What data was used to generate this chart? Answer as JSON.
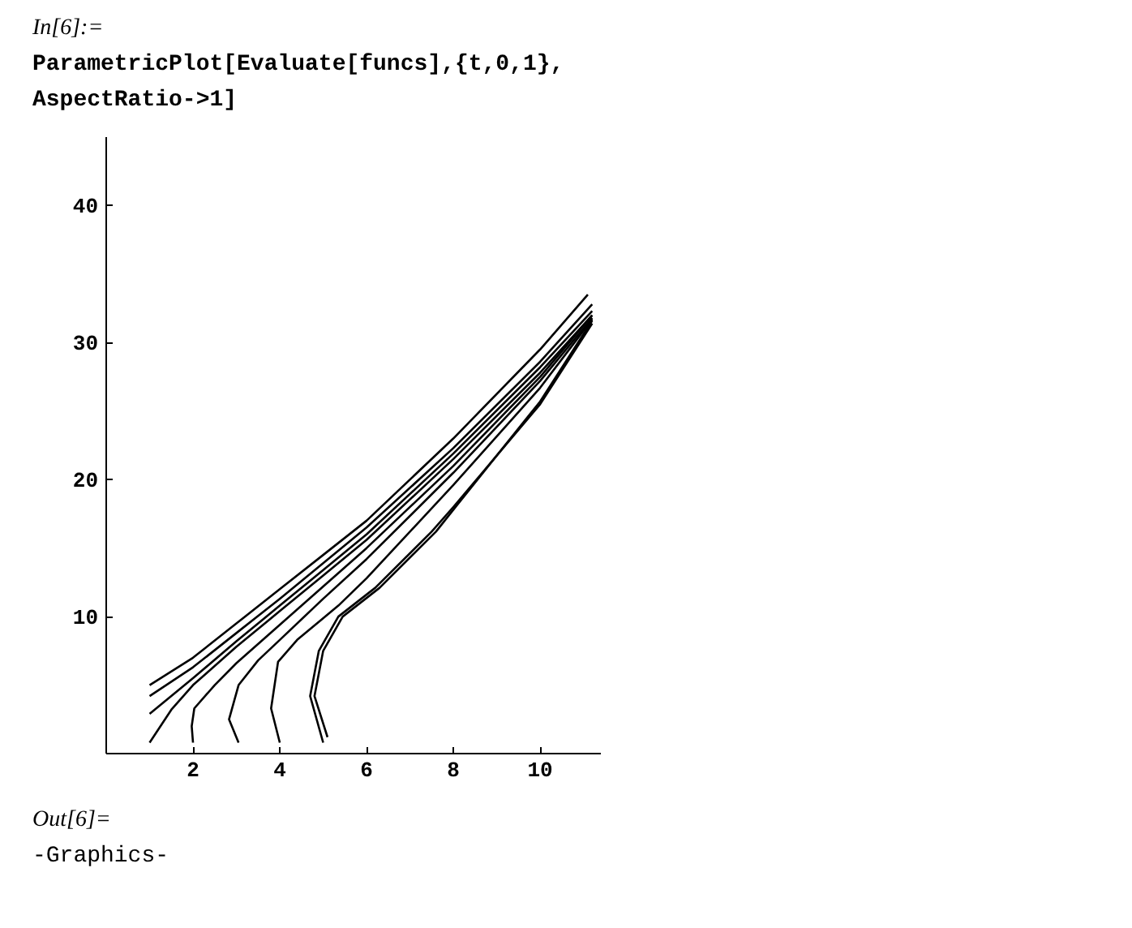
{
  "chart_data": {
    "type": "line",
    "annotations": [
      "In[6]:=",
      "ParametricPlot[Evaluate[funcs],{t,0,1},",
      "AspectRatio->1]",
      "Out[6]=",
      "-Graphics-"
    ],
    "xlim": [
      0,
      11.4
    ],
    "ylim": [
      0,
      45
    ],
    "xticks": [
      2,
      4,
      6,
      8,
      10
    ],
    "yticks": [
      10,
      20,
      30,
      40
    ],
    "grid": false,
    "marker": "none",
    "line_style": "solid",
    "series": [
      {
        "color": "#000000",
        "x": [
          1,
          2,
          3,
          4,
          5,
          6,
          8,
          10,
          11.1
        ],
        "values": [
          5,
          7,
          9.5,
          12,
          14.5,
          17,
          23,
          29.5,
          33.5
        ]
      },
      {
        "color": "#000000",
        "x": [
          1,
          2,
          3,
          4,
          5,
          6,
          8,
          10,
          11.2
        ],
        "values": [
          4.2,
          6.3,
          8.8,
          11.3,
          13.9,
          16.5,
          22.3,
          28.6,
          32.8
        ]
      },
      {
        "color": "#000000",
        "x": [
          1,
          2,
          3,
          4,
          5,
          6,
          8,
          10,
          11.2
        ],
        "values": [
          2.9,
          5.5,
          8.2,
          10.8,
          13.4,
          16,
          21.9,
          28.2,
          32.3
        ]
      },
      {
        "color": "#000000",
        "x": [
          1,
          1.5,
          2,
          3,
          4,
          5,
          6,
          8,
          10,
          11.2
        ],
        "values": [
          0.8,
          3.2,
          5,
          7.8,
          10.4,
          13,
          15.6,
          21.5,
          27.8,
          32
        ]
      },
      {
        "color": "#000000",
        "x": [
          2,
          1.97,
          2.03,
          2.5,
          3,
          4,
          5,
          6,
          8,
          10,
          11.2
        ],
        "values": [
          0.8,
          2,
          3.3,
          5,
          6.6,
          9.4,
          12.2,
          15,
          21,
          27.5,
          32
        ]
      },
      {
        "color": "#000000",
        "x": [
          3.05,
          2.83,
          3.05,
          3.5,
          4,
          5,
          6,
          8,
          10,
          11.2
        ],
        "values": [
          0.8,
          2.5,
          5,
          6.8,
          8.3,
          11.3,
          14.2,
          20.5,
          27.2,
          31.8
        ]
      },
      {
        "color": "#000000",
        "x": [
          4,
          3.8,
          3.96,
          4.4,
          5.35,
          6,
          8,
          10,
          11.2
        ],
        "values": [
          0.8,
          3.3,
          6.7,
          8.3,
          10.8,
          12.8,
          19.6,
          26.7,
          31.7
        ]
      },
      {
        "color": "#000000",
        "x": [
          5,
          4.7,
          4.9,
          5.35,
          6.2,
          7.5,
          8,
          10,
          11.2
        ],
        "values": [
          0.8,
          4.2,
          7.5,
          10,
          12.1,
          16.2,
          18,
          25.5,
          31.4
        ]
      },
      {
        "color": "#000000",
        "x": [
          5.1,
          4.8,
          5,
          5.45,
          6.3,
          7.6,
          8.1,
          10,
          11.2
        ],
        "values": [
          1.2,
          4.2,
          7.5,
          10,
          12.1,
          16.2,
          18.2,
          25.7,
          31.6
        ]
      }
    ]
  }
}
